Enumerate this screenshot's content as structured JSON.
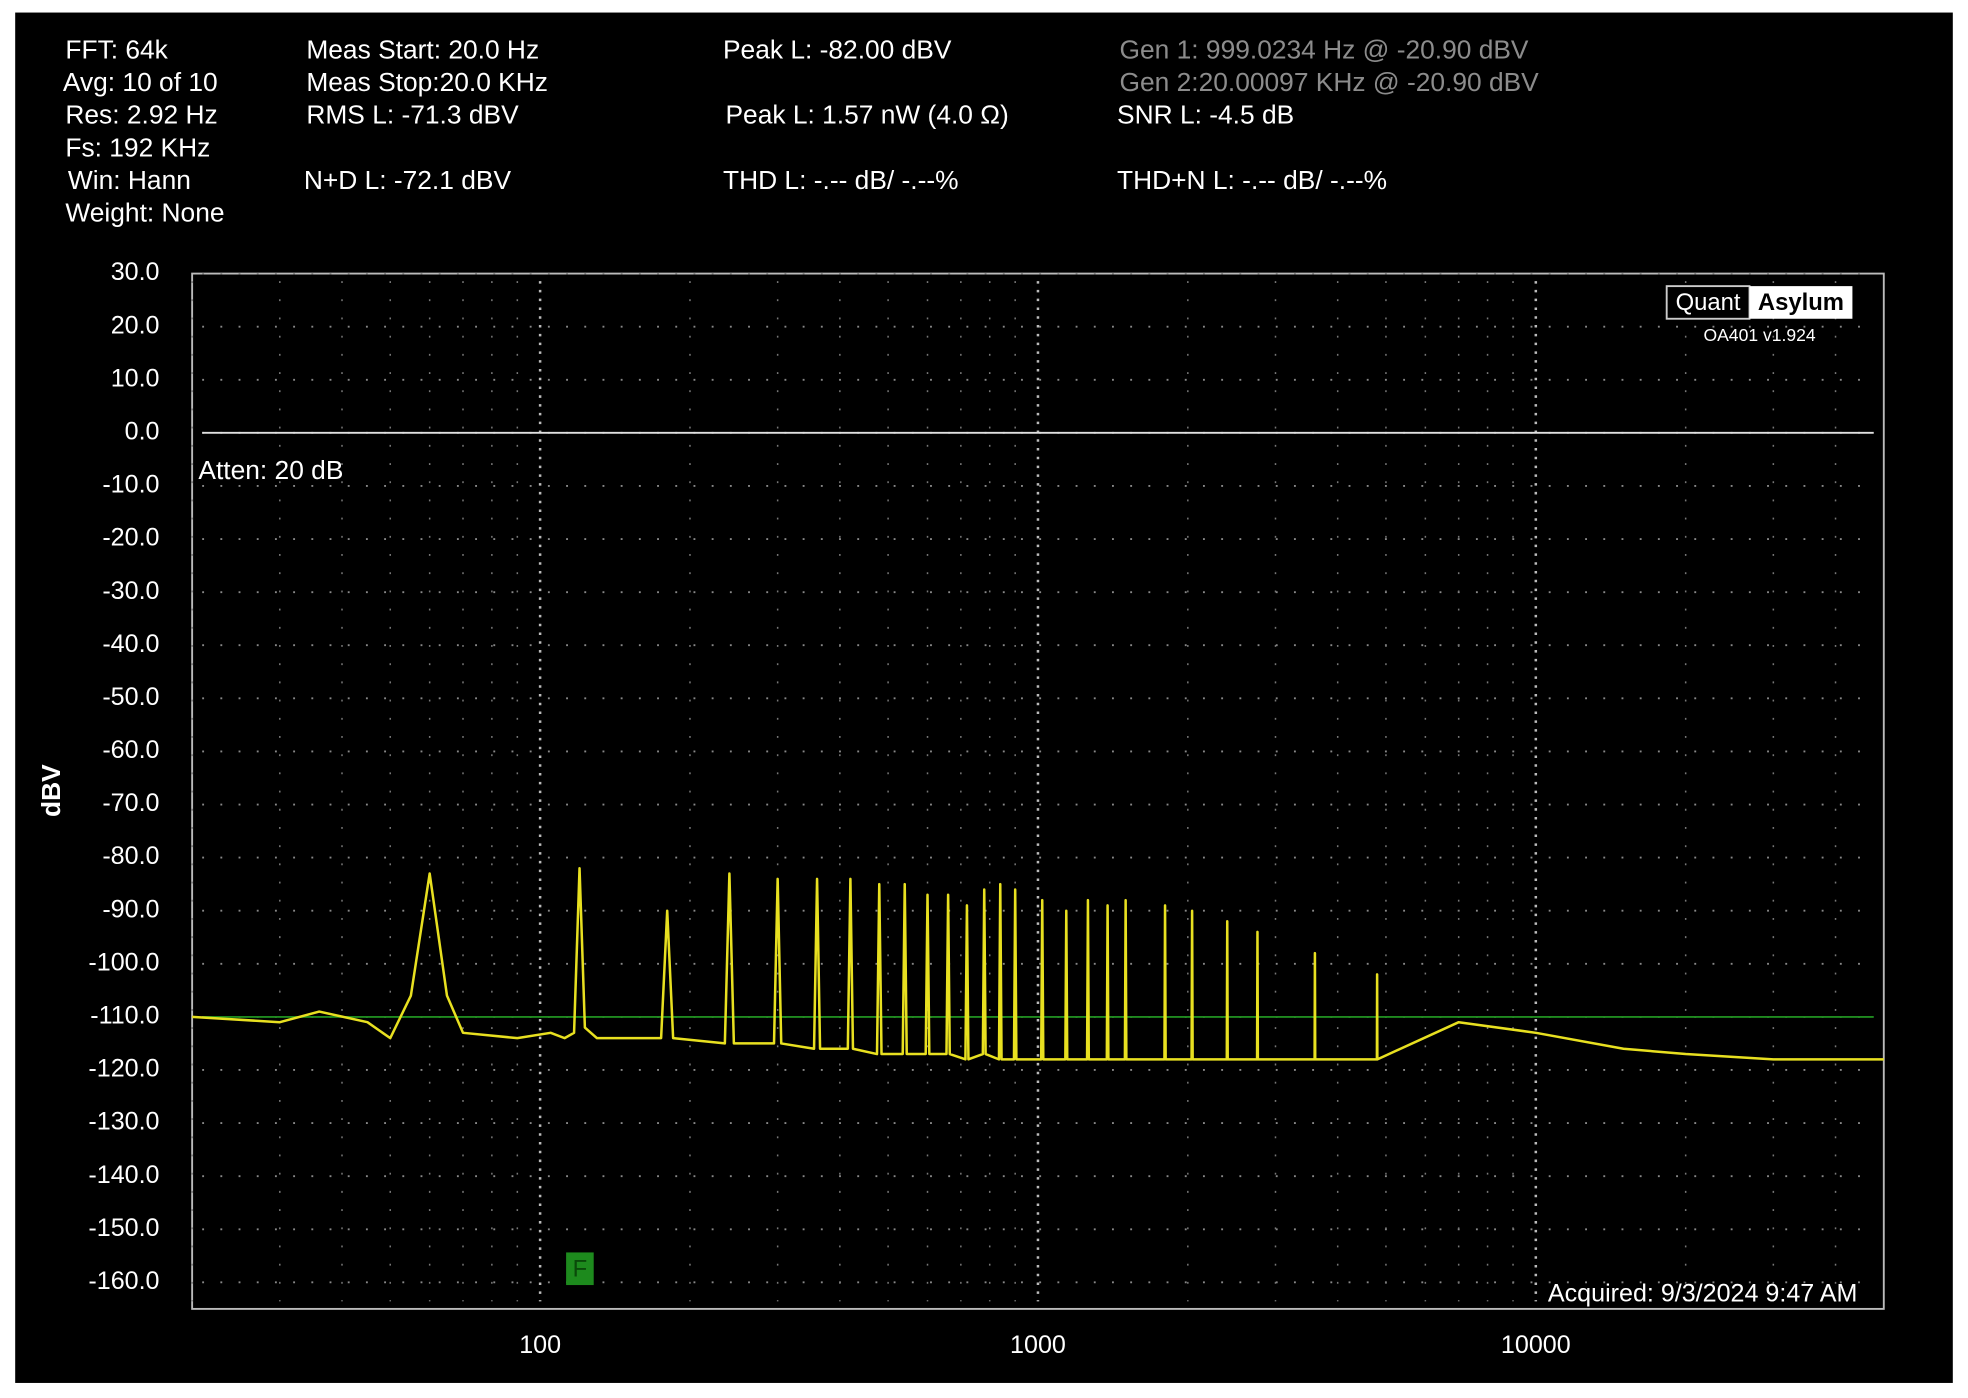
{
  "chart_data": {
    "type": "line",
    "header": [
      {
        "text": "FFT: 64k",
        "color": "#ffffff"
      },
      {
        "text": "Avg: 10 of 10",
        "color": "#ffffff"
      },
      {
        "text": "Res: 2.92 Hz",
        "color": "#ffffff"
      },
      {
        "text": "Fs: 192 KHz",
        "color": "#ffffff"
      },
      {
        "text": "Win: Hann",
        "color": "#ffffff"
      },
      {
        "text": "Weight: None",
        "color": "#ffffff"
      },
      {
        "text": "Meas Start: 20.0 Hz",
        "color": "#ffffff"
      },
      {
        "text": "Meas Stop:20.0 KHz",
        "color": "#ffffff"
      },
      {
        "text": "RMS L: -71.3 dBV",
        "color": "#ffffff"
      },
      {
        "text": "N+D L: -72.1 dBV",
        "color": "#ffffff"
      },
      {
        "text": "Peak L: -82.00 dBV",
        "color": "#ffffff"
      },
      {
        "text": "Peak L: 1.57 nW (4.0 Ω)",
        "color": "#ffffff"
      },
      {
        "text": "THD L: -.-- dB/ -.--%",
        "color": "#ffffff"
      },
      {
        "text": "Gen 1: 999.0234 Hz @ -20.90  dBV",
        "color": "#8c8c8c"
      },
      {
        "text": "Gen 2:20.00097 KHz @ -20.90  dBV",
        "color": "#8c8c8c"
      },
      {
        "text": "SNR L: -4.5 dB",
        "color": "#ffffff"
      },
      {
        "text": "THD+N L: -.-- dB/ -.--%",
        "color": "#ffffff"
      }
    ],
    "y_label": "dBV",
    "annotations": [
      "Atten: 20 dB",
      "OA401 v1.924",
      "Acquired: 9/3/2024  9:47 AM"
    ],
    "logo": [
      "Quant",
      "Asylum"
    ],
    "marker": "F",
    "x_scale": "log",
    "xlim": [
      20,
      50000
    ],
    "xticks": [
      100,
      1000,
      10000
    ],
    "xminorticks": [
      20,
      30,
      40,
      50,
      60,
      70,
      80,
      90,
      200,
      300,
      400,
      500,
      600,
      700,
      800,
      900,
      2000,
      3000,
      4000,
      5000,
      6000,
      7000,
      8000,
      9000,
      20000,
      30000,
      40000
    ],
    "ylim": [
      -165,
      30
    ],
    "yticks": [
      {
        "value": 30,
        "label": "30.0"
      },
      {
        "value": 20,
        "label": "20.0"
      },
      {
        "value": 10,
        "label": "10.0"
      },
      {
        "value": 0,
        "label": "0.0"
      },
      {
        "value": -10,
        "label": "-10.0"
      },
      {
        "value": -20,
        "label": "-20.0"
      },
      {
        "value": -30,
        "label": "-30.0"
      },
      {
        "value": -40,
        "label": "-40.0"
      },
      {
        "value": -50,
        "label": "-50.0"
      },
      {
        "value": -60,
        "label": "-60.0"
      },
      {
        "value": -70,
        "label": "-70.0"
      },
      {
        "value": -80,
        "label": "-80.0"
      },
      {
        "value": -90,
        "label": "-90.0"
      },
      {
        "value": -100,
        "label": "-100.0"
      },
      {
        "value": -110,
        "label": "-110.0"
      },
      {
        "value": -120,
        "label": "-120.0"
      },
      {
        "value": -130,
        "label": "-130.0"
      },
      {
        "value": -140,
        "label": "-140.0"
      },
      {
        "value": -150,
        "label": "-150.0"
      },
      {
        "value": -160,
        "label": "-160.0"
      }
    ],
    "grid": true,
    "ref_lines": [
      {
        "value": 0,
        "color": "#e0e0e0"
      },
      {
        "value": -110,
        "color": "#1f8a1f"
      }
    ],
    "x": [
      20,
      30,
      36,
      45,
      50,
      55,
      60,
      65,
      70,
      90,
      105,
      112,
      117,
      120,
      123,
      130,
      175,
      180,
      185,
      235,
      240,
      245,
      295,
      300,
      305,
      355,
      360,
      365,
      415,
      420,
      425,
      475,
      480,
      485,
      535,
      540,
      545,
      595,
      600,
      605,
      655,
      660,
      665,
      715,
      720,
      725,
      775,
      780,
      785,
      835,
      840,
      845,
      895,
      900,
      905,
      1015,
      1020,
      1025,
      1135,
      1140,
      1145,
      1255,
      1260,
      1265,
      1375,
      1380,
      1385,
      1495,
      1500,
      1505,
      1795,
      1800,
      1805,
      2035,
      2040,
      2045,
      2395,
      2400,
      2405,
      2755,
      2760,
      2765,
      3595,
      3600,
      3605,
      4795,
      4800,
      4805,
      7000,
      10000,
      15000,
      20000,
      30000,
      50000
    ],
    "series": [
      {
        "color": "#e8e020",
        "values": [
          -110,
          -111,
          -109,
          -111,
          -114,
          -106,
          -83,
          -106,
          -113,
          -114,
          -113,
          -114,
          -113,
          -82,
          -112,
          -114,
          -114,
          -90,
          -114,
          -115,
          -83,
          -115,
          -115,
          -84,
          -115,
          -116,
          -84,
          -116,
          -116,
          -84,
          -116,
          -117,
          -85,
          -117,
          -117,
          -85,
          -117,
          -117,
          -87,
          -117,
          -117,
          -87,
          -117,
          -118,
          -89,
          -118,
          -117,
          -86,
          -117,
          -118,
          -85,
          -118,
          -118,
          -86,
          -118,
          -118,
          -88,
          -118,
          -118,
          -90,
          -118,
          -118,
          -88,
          -118,
          -118,
          -89,
          -118,
          -118,
          -88,
          -118,
          -118,
          -89,
          -118,
          -118,
          -90,
          -118,
          -118,
          -92,
          -118,
          -118,
          -94,
          -118,
          -118,
          -98,
          -118,
          -118,
          -102,
          -118,
          -111,
          -113,
          -116,
          -117,
          -118,
          -118
        ]
      }
    ]
  }
}
